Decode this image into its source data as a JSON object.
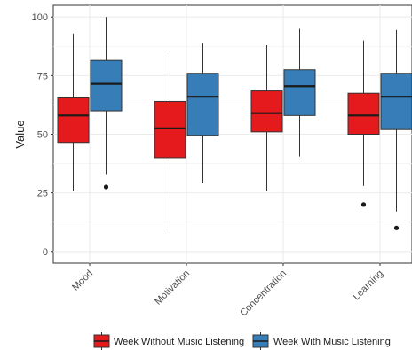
{
  "chart_data": {
    "type": "box",
    "title": "",
    "xlabel": "",
    "ylabel": "Value",
    "ylim": [
      -5,
      105
    ],
    "yticks": [
      0,
      25,
      50,
      75,
      100
    ],
    "grid": true,
    "legend_position": "bottom",
    "categories": [
      "Mood",
      "Motivation",
      "Concentration",
      "Learning"
    ],
    "series": [
      {
        "name": "Week Without Music Listening",
        "color": "#e41a1c",
        "boxes": [
          {
            "min": 26,
            "q1": 46.5,
            "median": 58,
            "q3": 65.5,
            "max": 93,
            "outliers": []
          },
          {
            "min": 10,
            "q1": 40,
            "median": 52.5,
            "q3": 64,
            "max": 84,
            "outliers": []
          },
          {
            "min": 26,
            "q1": 51,
            "median": 59,
            "q3": 68.5,
            "max": 88,
            "outliers": []
          },
          {
            "min": 28,
            "q1": 50,
            "median": 58,
            "q3": 67.5,
            "max": 90,
            "outliers": [
              20
            ]
          }
        ]
      },
      {
        "name": "Week With Music Listening",
        "color": "#377eb8",
        "boxes": [
          {
            "min": 33,
            "q1": 60,
            "median": 71.5,
            "q3": 81.5,
            "max": 100,
            "outliers": [
              27.5
            ]
          },
          {
            "min": 29,
            "q1": 49.5,
            "median": 66,
            "q3": 76,
            "max": 89,
            "outliers": []
          },
          {
            "min": 40.5,
            "q1": 58,
            "median": 70.5,
            "q3": 77.5,
            "max": 95,
            "outliers": []
          },
          {
            "min": 17,
            "q1": 52,
            "median": 66,
            "q3": 76,
            "max": 94.5,
            "outliers": [
              10
            ]
          }
        ]
      }
    ]
  }
}
